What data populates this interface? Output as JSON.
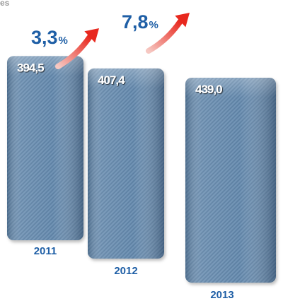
{
  "corner_text": "es",
  "colors": {
    "growth_text": "#1f5fa6",
    "year_text": "#1f5fa6",
    "arrow_start": "#f6c8c2",
    "arrow_end": "#e8281e",
    "denim_light": "#8ca9c4",
    "denim_mid": "#5f83a5",
    "denim_dark": "#3f5f7f"
  },
  "chart_data": {
    "type": "bar",
    "categories": [
      "2011",
      "2012",
      "2013"
    ],
    "values": [
      394.5,
      407.4,
      439.0
    ],
    "value_labels": [
      "394,5",
      "407,4",
      "439,0"
    ],
    "growth": [
      {
        "value": "3,3",
        "unit": "%"
      },
      {
        "value": "7,8",
        "unit": "%"
      }
    ],
    "title": "",
    "xlabel": "",
    "ylabel": ""
  }
}
